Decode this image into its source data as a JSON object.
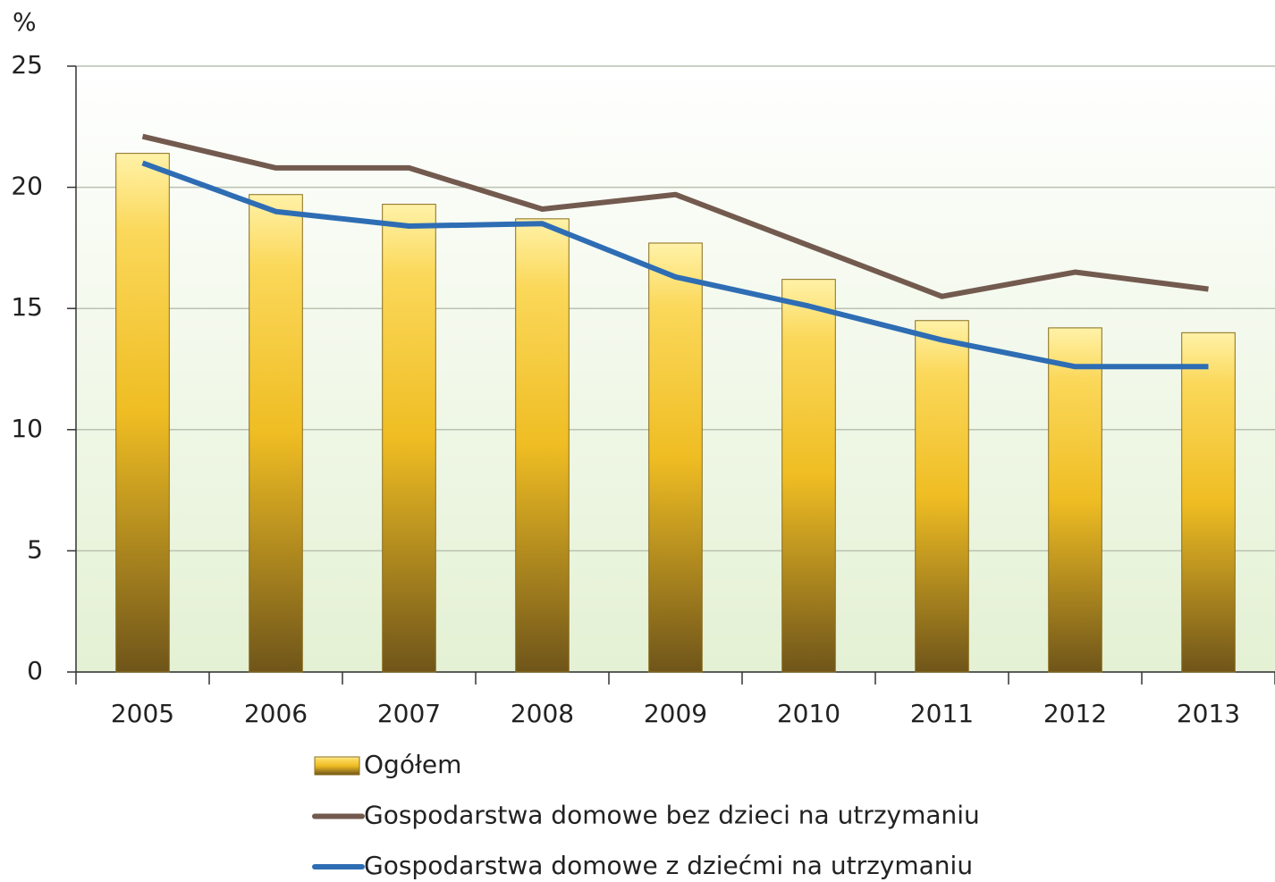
{
  "chart_data": {
    "type": "bar",
    "y_label": "%",
    "categories": [
      "2005",
      "2006",
      "2007",
      "2008",
      "2009",
      "2010",
      "2011",
      "2012",
      "2013"
    ],
    "series": [
      {
        "name": "Ogółem",
        "type": "bar",
        "color": "#f2c12e",
        "values": [
          21.4,
          19.7,
          19.3,
          18.7,
          17.7,
          16.2,
          14.5,
          14.2,
          14.0
        ]
      },
      {
        "name": "Gospodarstwa domowe bez dzieci na utrzymaniu",
        "type": "line",
        "color": "#735a4f",
        "values": [
          22.1,
          20.8,
          20.8,
          19.1,
          19.7,
          17.6,
          15.5,
          16.5,
          15.8
        ]
      },
      {
        "name": "Gospodarstwa domowe z dziećmi na utrzymaniu",
        "type": "line",
        "color": "#2e6db4",
        "values": [
          21.0,
          19.0,
          18.4,
          18.5,
          16.3,
          15.1,
          13.7,
          12.6,
          12.6
        ]
      }
    ],
    "ylim": [
      0,
      25
    ],
    "yticks": [
      0,
      5,
      10,
      15,
      20,
      25
    ],
    "grid": true
  }
}
